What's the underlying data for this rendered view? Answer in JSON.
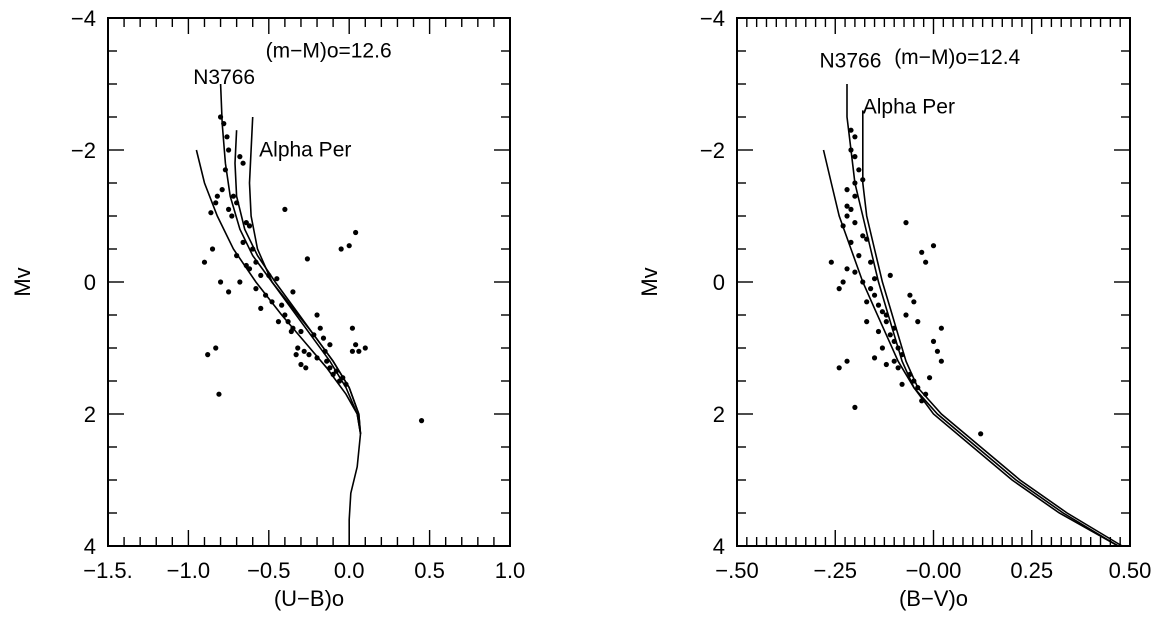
{
  "chart_data": [
    {
      "type": "scatter",
      "xlabel": "(U−B)o",
      "ylabel": "Mv",
      "xlim": [
        -1.5,
        1.0
      ],
      "ylim": [
        4,
        -4
      ],
      "xticks": [
        -1.5,
        -1.0,
        -0.5,
        0.0,
        0.5,
        1.0
      ],
      "xticklabels": [
        "−1.5.",
        "−1.0",
        "−0.5",
        "0.0",
        "0.5",
        "1.0"
      ],
      "yticks": [
        -4,
        -2,
        0,
        2,
        4
      ],
      "yticklabels": [
        "−4",
        "−2",
        "0",
        "2",
        "4"
      ],
      "annotations": [
        {
          "text": "N3766",
          "x": -0.97,
          "y": -3.0
        },
        {
          "text": "(m−M)o=12.6",
          "x": -0.52,
          "y": -3.4
        },
        {
          "text": "Alpha Per",
          "x": -0.56,
          "y": -1.9
        }
      ],
      "curves": [
        {
          "name": "N3766",
          "points": [
            [
              -0.8,
              -3.0
            ],
            [
              -0.79,
              -2.4
            ],
            [
              -0.77,
              -1.8
            ],
            [
              -0.74,
              -1.3
            ],
            [
              -0.68,
              -0.8
            ],
            [
              -0.6,
              -0.4
            ],
            [
              -0.48,
              0.0
            ],
            [
              -0.35,
              0.4
            ],
            [
              -0.22,
              0.8
            ],
            [
              -0.1,
              1.2
            ],
            [
              0.0,
              1.6
            ],
            [
              0.06,
              2.0
            ],
            [
              0.07,
              2.3
            ],
            [
              0.05,
              2.8
            ],
            [
              0.01,
              3.2
            ],
            [
              0.0,
              3.6
            ],
            [
              0.0,
              4.0
            ]
          ]
        },
        {
          "name": "Alpha Per",
          "points": [
            [
              -0.6,
              -2.5
            ],
            [
              -0.61,
              -2.0
            ],
            [
              -0.62,
              -1.5
            ],
            [
              -0.61,
              -1.0
            ],
            [
              -0.57,
              -0.5
            ],
            [
              -0.48,
              0.0
            ],
            [
              -0.36,
              0.4
            ],
            [
              -0.24,
              0.8
            ],
            [
              -0.12,
              1.2
            ],
            [
              -0.02,
              1.6
            ],
            [
              0.05,
              2.0
            ],
            [
              0.07,
              2.3
            ]
          ]
        },
        {
          "name": "",
          "points": [
            [
              -0.7,
              -2.3
            ],
            [
              -0.71,
              -1.8
            ],
            [
              -0.7,
              -1.3
            ],
            [
              -0.65,
              -0.8
            ],
            [
              -0.57,
              -0.4
            ],
            [
              -0.46,
              0.0
            ],
            [
              -0.34,
              0.4
            ],
            [
              -0.22,
              0.8
            ],
            [
              -0.1,
              1.2
            ],
            [
              0.0,
              1.6
            ],
            [
              0.06,
              2.0
            ],
            [
              0.07,
              2.3
            ]
          ]
        },
        {
          "name": "",
          "points": [
            [
              -0.95,
              -2.0
            ],
            [
              -0.9,
              -1.5
            ],
            [
              -0.82,
              -1.0
            ],
            [
              -0.72,
              -0.5
            ],
            [
              -0.58,
              0.0
            ],
            [
              -0.42,
              0.5
            ],
            [
              -0.28,
              0.9
            ],
            [
              -0.14,
              1.3
            ],
            [
              -0.02,
              1.7
            ],
            [
              0.05,
              2.0
            ],
            [
              0.07,
              2.3
            ]
          ]
        }
      ],
      "points": [
        [
          -0.8,
          -2.5
        ],
        [
          -0.78,
          -2.4
        ],
        [
          -0.76,
          -2.2
        ],
        [
          -0.75,
          -2.0
        ],
        [
          -0.77,
          -1.7
        ],
        [
          -0.68,
          -1.9
        ],
        [
          -0.66,
          -1.8
        ],
        [
          -0.79,
          -1.4
        ],
        [
          -0.82,
          -1.3
        ],
        [
          -0.83,
          -1.2
        ],
        [
          -0.86,
          -1.05
        ],
        [
          -0.72,
          -1.3
        ],
        [
          -0.7,
          -1.2
        ],
        [
          -0.75,
          -1.1
        ],
        [
          -0.73,
          -1.0
        ],
        [
          -0.64,
          -0.9
        ],
        [
          -0.62,
          -0.85
        ],
        [
          -0.66,
          -0.6
        ],
        [
          -0.6,
          -0.5
        ],
        [
          -0.7,
          -0.4
        ],
        [
          -0.58,
          -0.3
        ],
        [
          -0.62,
          -0.2
        ],
        [
          -0.55,
          -0.1
        ],
        [
          -0.58,
          0.1
        ],
        [
          -0.52,
          0.2
        ],
        [
          -0.48,
          0.3
        ],
        [
          -0.42,
          0.35
        ],
        [
          -0.55,
          0.4
        ],
        [
          -0.4,
          0.5
        ],
        [
          -0.38,
          0.6
        ],
        [
          -0.35,
          0.7
        ],
        [
          -0.3,
          0.75
        ],
        [
          -0.22,
          0.8
        ],
        [
          -0.16,
          0.85
        ],
        [
          -0.12,
          0.95
        ],
        [
          -0.32,
          1.0
        ],
        [
          -0.28,
          1.05
        ],
        [
          -0.25,
          1.1
        ],
        [
          -0.2,
          1.15
        ],
        [
          -0.14,
          1.2
        ],
        [
          -0.3,
          1.25
        ],
        [
          -0.08,
          1.35
        ],
        [
          -0.04,
          1.45
        ],
        [
          -0.1,
          1.4
        ],
        [
          0.02,
          1.05
        ],
        [
          0.04,
          0.95
        ],
        [
          0.06,
          1.05
        ],
        [
          0.1,
          1.0
        ],
        [
          0.02,
          0.7
        ],
        [
          0.0,
          -0.55
        ],
        [
          -0.05,
          -0.5
        ],
        [
          0.04,
          -0.75
        ],
        [
          -0.4,
          -1.1
        ],
        [
          -0.26,
          -0.35
        ],
        [
          -0.88,
          1.1
        ],
        [
          -0.83,
          1.0
        ],
        [
          -0.81,
          1.7
        ],
        [
          0.45,
          2.1
        ],
        [
          -0.9,
          -0.3
        ],
        [
          -0.85,
          -0.5
        ],
        [
          -0.8,
          0.0
        ],
        [
          -0.75,
          0.15
        ],
        [
          -0.68,
          0.0
        ],
        [
          -0.64,
          -0.25
        ],
        [
          -0.5,
          -0.1
        ],
        [
          -0.45,
          -0.05
        ],
        [
          -0.35,
          0.15
        ],
        [
          -0.2,
          0.5
        ],
        [
          -0.18,
          0.7
        ],
        [
          -0.44,
          0.6
        ],
        [
          -0.15,
          1.05
        ],
        [
          -0.06,
          1.5
        ],
        [
          -0.02,
          1.55
        ],
        [
          -0.12,
          1.3
        ],
        [
          -0.36,
          0.75
        ],
        [
          -0.33,
          1.1
        ],
        [
          -0.27,
          1.3
        ]
      ]
    },
    {
      "type": "scatter",
      "xlabel": "(B−V)o",
      "ylabel": "Mv",
      "xlim": [
        -0.5,
        0.5
      ],
      "ylim": [
        4,
        -4
      ],
      "xticks": [
        -0.5,
        -0.25,
        0.0,
        0.25,
        0.5
      ],
      "xticklabels": [
        "−.50",
        "−.25",
        "−0.00",
        "0.25",
        "0.50"
      ],
      "yticks": [
        -4,
        -2,
        0,
        2,
        4
      ],
      "yticklabels": [
        "−4",
        "−2",
        "0",
        "2",
        "4"
      ],
      "annotations": [
        {
          "text": "N3766",
          "x": -0.29,
          "y": -3.25
        },
        {
          "text": "(m−M)o=12.4",
          "x": -0.1,
          "y": -3.3
        },
        {
          "text": "Alpha Per",
          "x": -0.18,
          "y": -2.55
        }
      ],
      "curves": [
        {
          "name": "N3766",
          "points": [
            [
              -0.22,
              -3.0
            ],
            [
              -0.22,
              -2.5
            ],
            [
              -0.21,
              -2.0
            ],
            [
              -0.2,
              -1.5
            ],
            [
              -0.18,
              -1.0
            ],
            [
              -0.16,
              -0.5
            ],
            [
              -0.14,
              0.0
            ],
            [
              -0.12,
              0.4
            ],
            [
              -0.1,
              0.8
            ],
            [
              -0.08,
              1.2
            ],
            [
              -0.05,
              1.6
            ],
            [
              0.0,
              2.0
            ],
            [
              0.1,
              2.5
            ],
            [
              0.2,
              3.0
            ],
            [
              0.32,
              3.5
            ],
            [
              0.47,
              4.0
            ]
          ]
        },
        {
          "name": "Alpha Per",
          "points": [
            [
              -0.18,
              -2.6
            ],
            [
              -0.18,
              -2.0
            ],
            [
              -0.18,
              -1.5
            ],
            [
              -0.17,
              -1.0
            ],
            [
              -0.15,
              -0.5
            ],
            [
              -0.13,
              0.0
            ],
            [
              -0.11,
              0.4
            ],
            [
              -0.09,
              0.8
            ],
            [
              -0.07,
              1.2
            ],
            [
              -0.04,
              1.6
            ],
            [
              0.02,
              2.0
            ],
            [
              0.12,
              2.5
            ],
            [
              0.22,
              3.0
            ],
            [
              0.34,
              3.5
            ],
            [
              0.48,
              4.0
            ]
          ]
        },
        {
          "name": "",
          "points": [
            [
              -0.28,
              -2.0
            ],
            [
              -0.26,
              -1.5
            ],
            [
              -0.24,
              -1.0
            ],
            [
              -0.21,
              -0.5
            ],
            [
              -0.18,
              0.0
            ],
            [
              -0.15,
              0.4
            ],
            [
              -0.12,
              0.8
            ],
            [
              -0.09,
              1.2
            ],
            [
              -0.05,
              1.6
            ],
            [
              0.01,
              2.0
            ],
            [
              0.11,
              2.5
            ],
            [
              0.21,
              3.0
            ],
            [
              0.33,
              3.5
            ],
            [
              0.47,
              4.0
            ]
          ]
        }
      ],
      "points": [
        [
          -0.21,
          -2.3
        ],
        [
          -0.2,
          -2.2
        ],
        [
          -0.21,
          -2.0
        ],
        [
          -0.2,
          -1.9
        ],
        [
          -0.19,
          -1.7
        ],
        [
          -0.18,
          -1.55
        ],
        [
          -0.2,
          -1.5
        ],
        [
          -0.22,
          -1.4
        ],
        [
          -0.2,
          -1.3
        ],
        [
          -0.22,
          -1.15
        ],
        [
          -0.21,
          -1.1
        ],
        [
          -0.22,
          -1.0
        ],
        [
          -0.23,
          -0.85
        ],
        [
          -0.2,
          -0.9
        ],
        [
          -0.18,
          -0.7
        ],
        [
          -0.17,
          -0.65
        ],
        [
          -0.21,
          -0.6
        ],
        [
          -0.19,
          -0.4
        ],
        [
          -0.16,
          -0.3
        ],
        [
          -0.22,
          -0.2
        ],
        [
          -0.2,
          -0.15
        ],
        [
          -0.18,
          0.0
        ],
        [
          -0.16,
          0.1
        ],
        [
          -0.15,
          0.2
        ],
        [
          -0.17,
          0.3
        ],
        [
          -0.14,
          0.35
        ],
        [
          -0.13,
          0.45
        ],
        [
          -0.12,
          0.5
        ],
        [
          -0.12,
          0.6
        ],
        [
          -0.1,
          0.7
        ],
        [
          -0.11,
          0.8
        ],
        [
          -0.1,
          0.9
        ],
        [
          -0.09,
          1.0
        ],
        [
          -0.08,
          1.1
        ],
        [
          -0.1,
          1.2
        ],
        [
          -0.09,
          1.3
        ],
        [
          -0.06,
          1.4
        ],
        [
          -0.05,
          1.5
        ],
        [
          -0.04,
          1.6
        ],
        [
          -0.02,
          1.7
        ],
        [
          -0.03,
          1.8
        ],
        [
          -0.08,
          1.55
        ],
        [
          -0.12,
          1.25
        ],
        [
          -0.07,
          -0.9
        ],
        [
          -0.03,
          -0.45
        ],
        [
          -0.02,
          -0.3
        ],
        [
          0.0,
          -0.55
        ],
        [
          0.0,
          0.9
        ],
        [
          0.01,
          1.05
        ],
        [
          0.02,
          1.2
        ],
        [
          0.02,
          0.7
        ],
        [
          -0.01,
          1.45
        ],
        [
          -0.2,
          1.9
        ],
        [
          -0.22,
          1.2
        ],
        [
          -0.24,
          1.3
        ],
        [
          -0.24,
          0.1
        ],
        [
          -0.23,
          0.0
        ],
        [
          -0.26,
          -0.3
        ],
        [
          -0.17,
          0.6
        ],
        [
          -0.14,
          0.75
        ],
        [
          -0.13,
          1.0
        ],
        [
          -0.15,
          1.15
        ],
        [
          -0.06,
          0.2
        ],
        [
          -0.05,
          0.3
        ],
        [
          -0.04,
          0.6
        ],
        [
          -0.07,
          0.5
        ],
        [
          0.12,
          2.3
        ],
        [
          -0.11,
          -0.1
        ],
        [
          -0.15,
          -0.05
        ]
      ]
    }
  ]
}
